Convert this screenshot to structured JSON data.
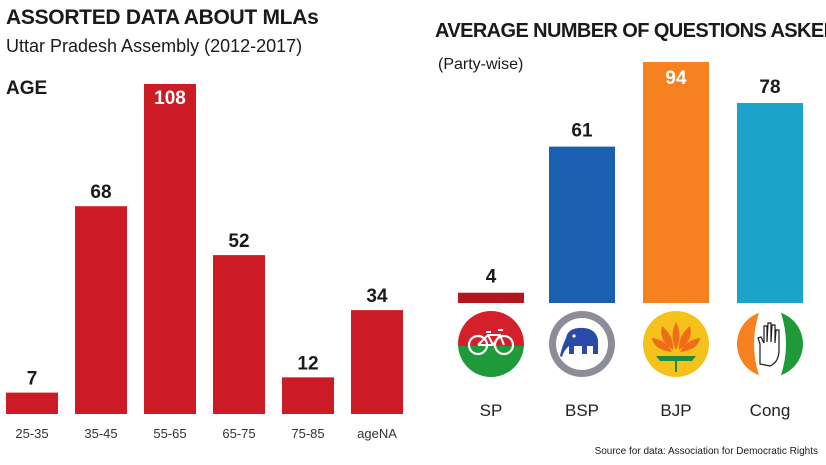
{
  "header": {
    "title": "ASSORTED DATA ABOUT MLAs",
    "subtitle": "Uttar Pradesh Assembly (2012-2017)"
  },
  "source": "Source for data: Association for Democratic Rights",
  "chart_data": [
    {
      "type": "bar",
      "title": "AGE",
      "categories": [
        "25-35",
        "35-45",
        "55-65",
        "65-75",
        "75-85",
        "ageNA"
      ],
      "values": [
        7,
        68,
        108,
        52,
        12,
        34
      ],
      "ylim": [
        0,
        108
      ],
      "color": "#cc1b24",
      "grid": false
    },
    {
      "type": "bar",
      "title": "AVERAGE NUMBER OF QUESTIONS ASKED",
      "subtitle": "(Party-wise)",
      "categories": [
        "SP",
        "BSP",
        "BJP",
        "Cong"
      ],
      "values": [
        4,
        61,
        94,
        78
      ],
      "ylim": [
        0,
        94
      ],
      "colors": [
        "#b3161c",
        "#1a5fb0",
        "#f5821f",
        "#1ca3cc"
      ],
      "grid": false
    }
  ]
}
